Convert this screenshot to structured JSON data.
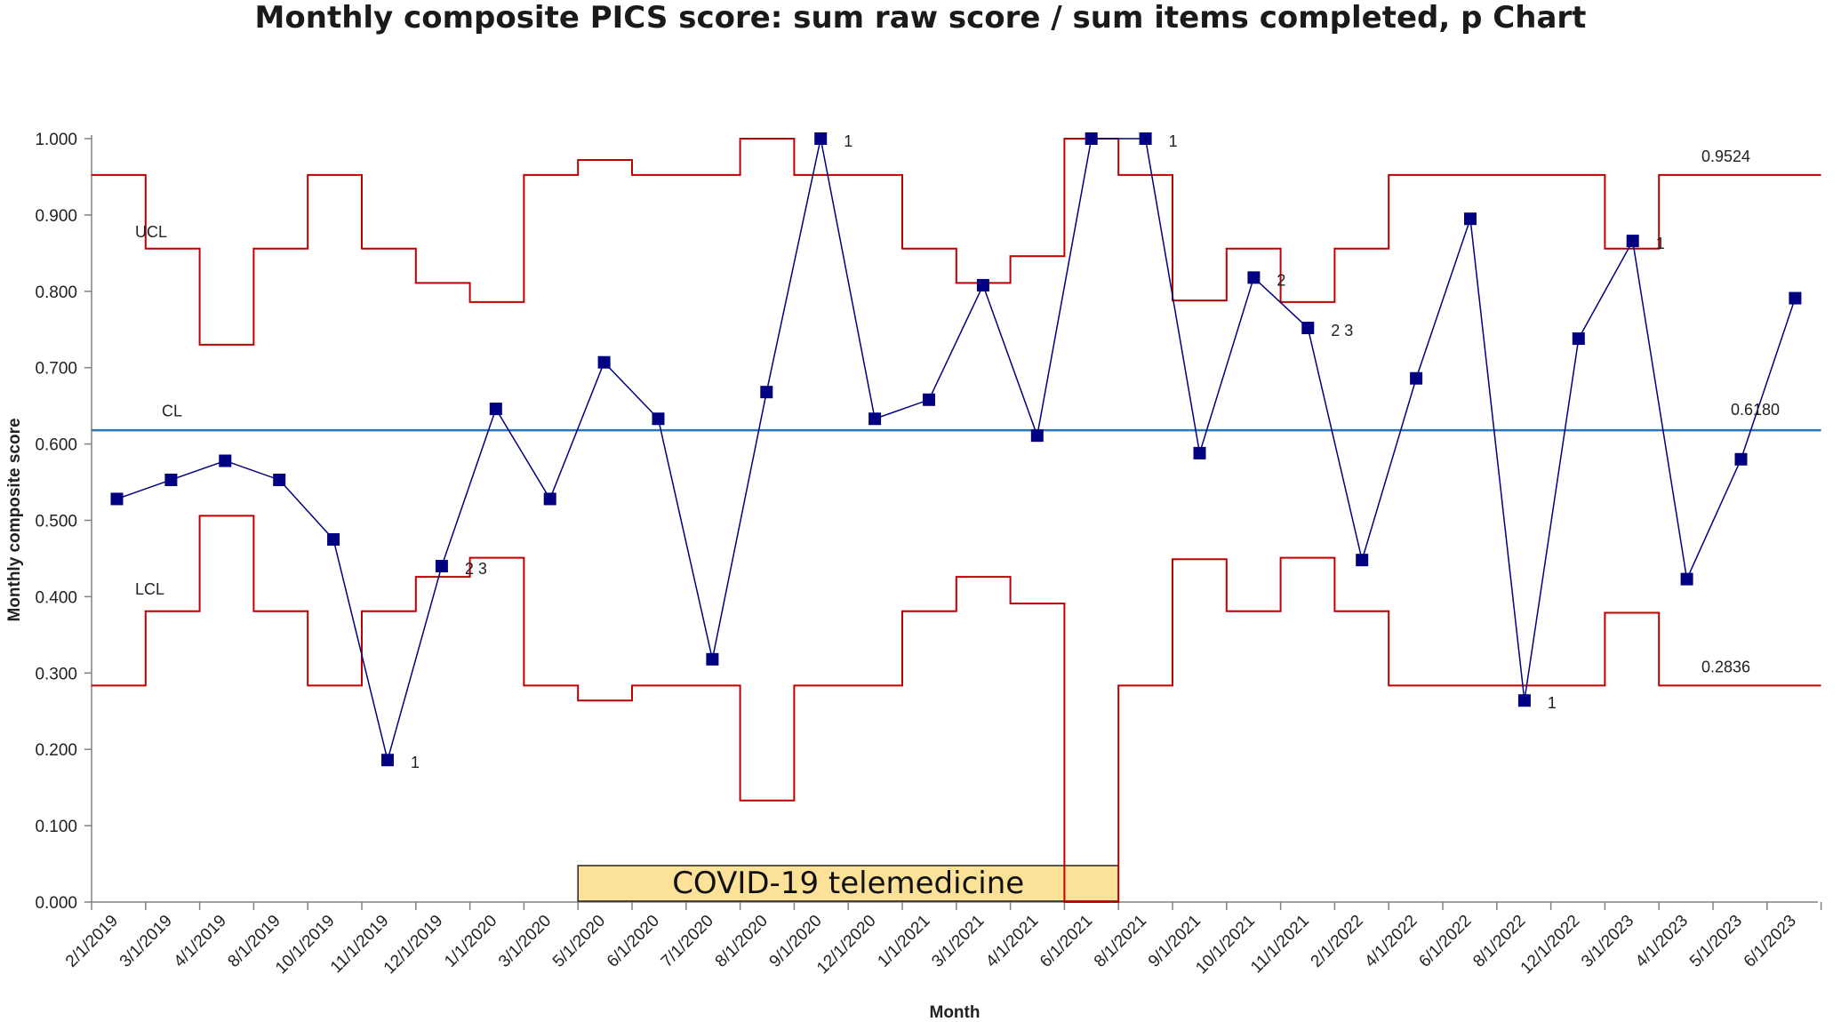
{
  "chart_data": {
    "type": "line",
    "chart_kind": "p Chart",
    "title": "Monthly composite PICS score: sum raw score / sum items completed, p Chart",
    "xlabel": "Month",
    "ylabel": "Monthly composite score",
    "ylim": [
      0,
      1
    ],
    "yticks": [
      "0.000",
      "0.100",
      "0.200",
      "0.300",
      "0.400",
      "0.500",
      "0.600",
      "0.700",
      "0.800",
      "0.900",
      "1.000"
    ],
    "grid": false,
    "categories": [
      "2/1/2019",
      "3/1/2019",
      "4/1/2019",
      "8/1/2019",
      "10/1/2019",
      "11/1/2019",
      "12/1/2019",
      "1/1/2020",
      "3/1/2020",
      "5/1/2020",
      "6/1/2020",
      "7/1/2020",
      "8/1/2020",
      "9/1/2020",
      "12/1/2020",
      "1/1/2021",
      "3/1/2021",
      "4/1/2021",
      "6/1/2021",
      "8/1/2021",
      "9/1/2021",
      "10/1/2021",
      "11/1/2021",
      "2/1/2022",
      "4/1/2022",
      "6/1/2022",
      "8/1/2022",
      "12/1/2022",
      "3/1/2023",
      "4/1/2023",
      "5/1/2023",
      "6/1/2023"
    ],
    "series": [
      {
        "name": "",
        "values": [
          0.528,
          0.553,
          0.578,
          0.553,
          0.475,
          0.186,
          0.44,
          0.646,
          0.528,
          0.707,
          0.633,
          0.318,
          0.668,
          1.0,
          0.633,
          0.658,
          0.808,
          0.611,
          1.0,
          1.0,
          0.588,
          0.818,
          0.752,
          0.448,
          0.686,
          0.895,
          0.264,
          0.738,
          0.866,
          0.423,
          0.58,
          0.791
        ],
        "color": "#000080"
      }
    ],
    "ucl": {
      "label": "UCL",
      "values": [
        0.9524,
        0.856,
        0.73,
        0.856,
        0.9524,
        0.856,
        0.811,
        0.786,
        0.9524,
        0.972,
        0.9524,
        0.9524,
        1.0,
        0.9524,
        0.9524,
        0.856,
        0.811,
        0.846,
        1.0,
        0.9524,
        0.788,
        0.856,
        0.786,
        0.856,
        0.9524,
        0.9524,
        0.9524,
        0.9524,
        0.856,
        0.9524,
        0.9524,
        0.9524
      ],
      "last_value_label": "0.9524",
      "color": "#c00000"
    },
    "lcl": {
      "label": "LCL",
      "values": [
        0.2836,
        0.381,
        0.506,
        0.381,
        0.2836,
        0.381,
        0.426,
        0.451,
        0.2836,
        0.264,
        0.2836,
        0.2836,
        0.133,
        0.2836,
        0.2836,
        0.381,
        0.426,
        0.391,
        0.0,
        0.2836,
        0.449,
        0.381,
        0.451,
        0.381,
        0.2836,
        0.2836,
        0.2836,
        0.2836,
        0.379,
        0.2836,
        0.2836,
        0.2836
      ],
      "last_value_label": "0.2836",
      "color": "#c00000"
    },
    "cl": {
      "label": "CL",
      "value": 0.618,
      "value_label": "0.6180",
      "color": "#2e75b6"
    },
    "annotations": [
      {
        "index": 5,
        "text": "1"
      },
      {
        "index": 6,
        "text": "2 3"
      },
      {
        "index": 13,
        "text": "1"
      },
      {
        "index": 19,
        "text": "1"
      },
      {
        "index": 21,
        "text": "2"
      },
      {
        "index": 22,
        "text": "2 3"
      },
      {
        "index": 26,
        "text": "1"
      },
      {
        "index": 28,
        "text": "1"
      }
    ],
    "covid_band": {
      "label": "COVID-19 telemedicine",
      "start_index": 9,
      "end_index": 19,
      "color": "#fce199"
    }
  }
}
